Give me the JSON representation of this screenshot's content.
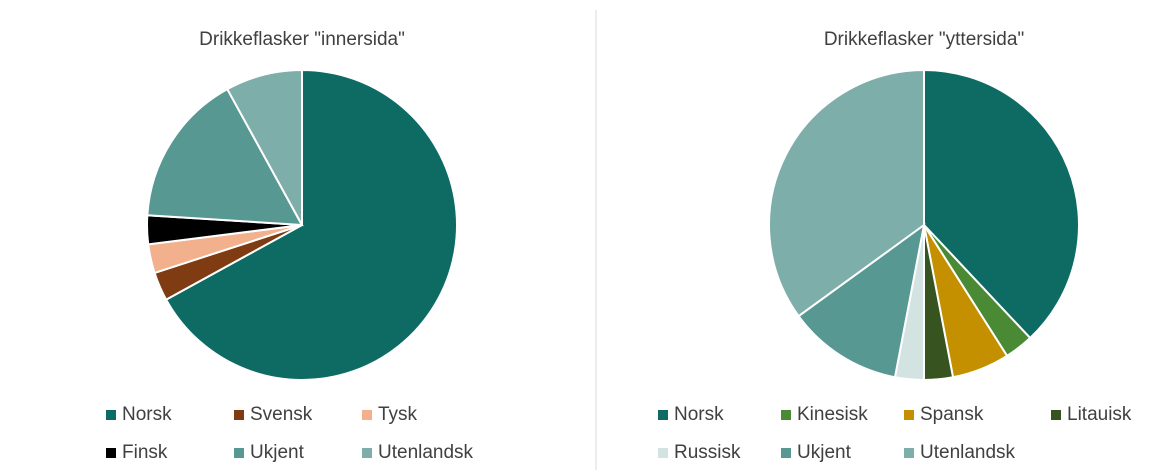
{
  "chart_data": [
    {
      "type": "pie",
      "title": "Drikkeflasker \"innersida\"",
      "categories": [
        "Norsk",
        "Svensk",
        "Tysk",
        "Finsk",
        "Ukjent",
        "Utenlandsk"
      ],
      "values": [
        67,
        3,
        3,
        3,
        16,
        8
      ],
      "colors": [
        "#0e6b63",
        "#7f3b12",
        "#f2b08c",
        "#000000",
        "#579892",
        "#7eaeaa"
      ]
    },
    {
      "type": "pie",
      "title": "Drikkeflasker \"yttersida\"",
      "categories": [
        "Norsk",
        "Kinesisk",
        "Spansk",
        "Litauisk",
        "Russisk",
        "Ukjent",
        "Utenlandsk"
      ],
      "values": [
        38,
        3,
        6,
        3,
        3,
        12,
        35
      ],
      "colors": [
        "#0e6b63",
        "#4a8a35",
        "#c49000",
        "#37531f",
        "#d3e3e1",
        "#579892",
        "#7eaeaa"
      ]
    }
  ]
}
